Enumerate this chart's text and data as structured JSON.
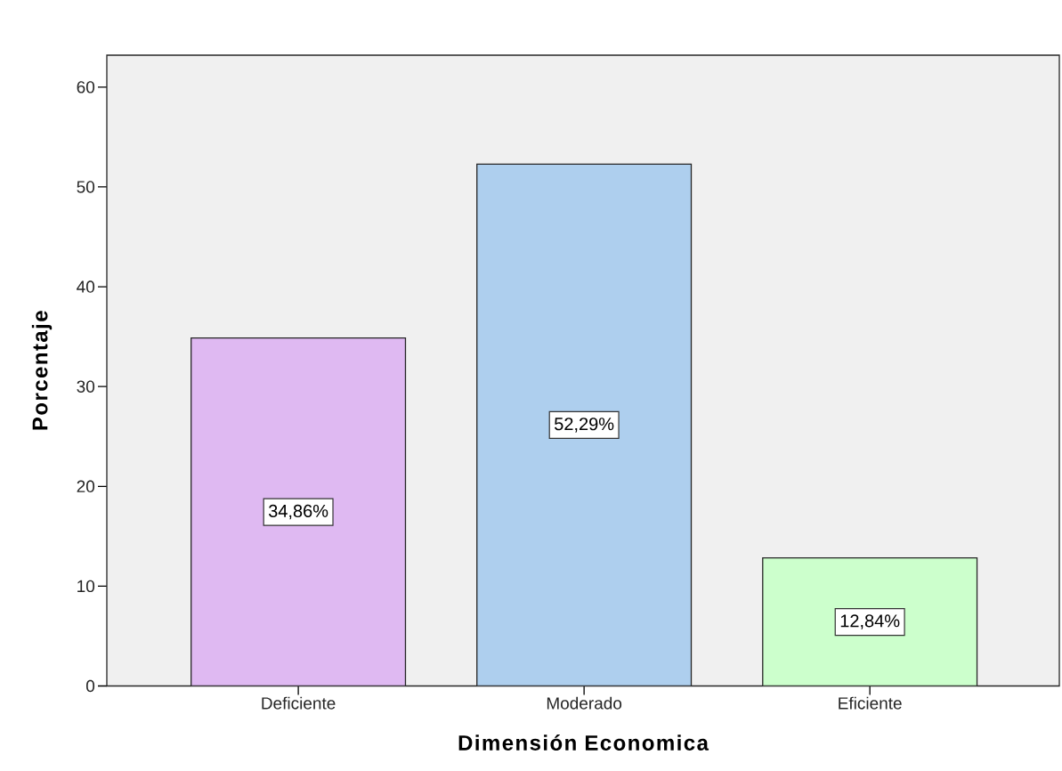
{
  "chart_data": {
    "type": "bar",
    "xlabel": "Dimensión Economica",
    "ylabel": "Porcentaje",
    "categories": [
      "Deficiente",
      "Moderado",
      "Eficiente"
    ],
    "values": [
      34.86,
      52.29,
      12.84
    ],
    "colors": [
      "#dfb9f2",
      "#aecfee",
      "#ccffcc"
    ],
    "value_labels": [
      "34,86%",
      "52,29%",
      "12,84%"
    ],
    "ylim": [
      0,
      63.2
    ],
    "yticks": [
      0,
      10,
      20,
      30,
      40,
      50,
      60
    ]
  }
}
